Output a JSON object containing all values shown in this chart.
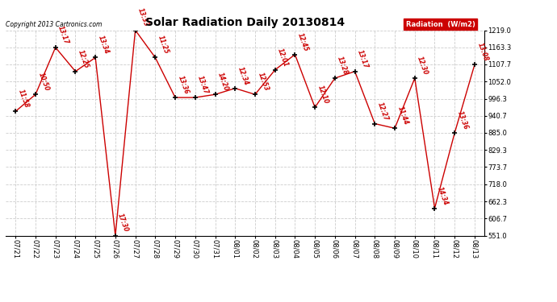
{
  "title": "Solar Radiation Daily 20130814",
  "copyright": "Copyright 2013 Cartronics.com",
  "legend_label": "Radiation  (W/m2)",
  "background_color": "#ffffff",
  "plot_background_color": "#ffffff",
  "grid_color": "#cccccc",
  "line_color": "#cc0000",
  "marker_color": "#000000",
  "label_color": "#cc0000",
  "x_labels": [
    "07/21",
    "07/22",
    "07/23",
    "07/24",
    "07/25",
    "07/26",
    "07/27",
    "07/28",
    "07/29",
    "07/30",
    "07/31",
    "08/01",
    "08/02",
    "08/03",
    "08/04",
    "08/05",
    "08/06",
    "08/07",
    "08/08",
    "08/09",
    "08/10",
    "08/11",
    "08/12",
    "08/13"
  ],
  "y_values": [
    955,
    1010,
    1163,
    1085,
    1130,
    551,
    1219,
    1130,
    1000,
    1000,
    1010,
    1030,
    1010,
    1090,
    1140,
    968,
    1063,
    1085,
    915,
    900,
    1063,
    640,
    885,
    1107
  ],
  "point_labels": [
    "11:58",
    "10:50",
    "13:17",
    "12:25",
    "13:34",
    "17:30",
    "13:33",
    "11:25",
    "13:36",
    "13:47",
    "14:20",
    "12:34",
    "12:53",
    "12:01",
    "12:45",
    "12:10",
    "13:28",
    "13:17",
    "12:27",
    "11:44",
    "12:30",
    "14:34",
    "13:36",
    "13:08"
  ],
  "ylim_min": 551.0,
  "ylim_max": 1219.0,
  "ytick_values": [
    551.0,
    606.7,
    662.3,
    718.0,
    773.7,
    829.3,
    885.0,
    940.7,
    996.3,
    1052.0,
    1107.7,
    1163.3,
    1219.0
  ],
  "legend_bg": "#cc0000",
  "legend_text_color": "#ffffff",
  "title_fontsize": 10,
  "tick_fontsize": 6,
  "label_fontsize": 5.5,
  "copyright_fontsize": 5.5
}
